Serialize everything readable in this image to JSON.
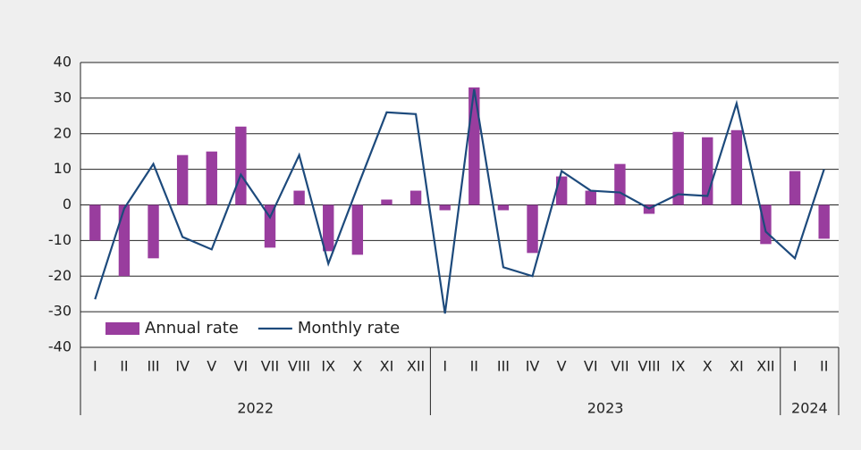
{
  "chart_data": {
    "type": "bar_line",
    "categories": [
      "I",
      "II",
      "III",
      "IV",
      "V",
      "VI",
      "VII",
      "VIII",
      "IX",
      "X",
      "XI",
      "XII",
      "I",
      "II",
      "III",
      "IV",
      "V",
      "VI",
      "VII",
      "VIII",
      "IX",
      "X",
      "XI",
      "XII",
      "I",
      "II"
    ],
    "groups": [
      {
        "label": "2022",
        "span": 12
      },
      {
        "label": "2023",
        "span": 12
      },
      {
        "label": "2024",
        "span": 2
      }
    ],
    "series": [
      {
        "name": "Annual rate",
        "type": "bar",
        "color": "#993d9e",
        "values": [
          -10,
          -20,
          -15,
          14,
          15,
          22,
          -12,
          4,
          -13,
          -14,
          1.5,
          4,
          -1.5,
          33,
          -1.5,
          -13.5,
          8,
          4,
          11.5,
          -2.5,
          20.5,
          19,
          21,
          -11,
          9.5,
          -9.5
        ]
      },
      {
        "name": "Monthly rate",
        "type": "line",
        "color": "#1d4a7c",
        "values": [
          -26.5,
          -1,
          11.5,
          -9,
          -12.5,
          8.5,
          -3.5,
          14,
          -16.5,
          5,
          26,
          25.5,
          -30.5,
          32.5,
          -17.5,
          -20,
          9.5,
          4,
          3.5,
          -1,
          3,
          2.5,
          28.5,
          -7.5,
          -15,
          10
        ]
      }
    ],
    "ylim": [
      -40,
      40
    ],
    "yticks": [
      -40,
      -30,
      -20,
      -10,
      0,
      10,
      20,
      30,
      40
    ],
    "grid": true
  }
}
